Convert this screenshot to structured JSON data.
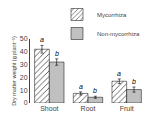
{
  "chart_data": {
    "type": "bar",
    "categories": [
      "Shoot",
      "Root",
      "Fruit"
    ],
    "series": [
      {
        "name": "Mycorrhiza",
        "color": "#e8e8e8",
        "values": [
          42,
          7.5,
          17
        ],
        "error": [
          3.0,
          1.2,
          1.8
        ],
        "annotations": [
          "a",
          "a",
          "a"
        ]
      },
      {
        "name": "Non-mycorrhiza",
        "color": "#c0c0c0",
        "values": [
          32,
          4.5,
          10.5
        ],
        "error": [
          2.5,
          0.8,
          2.0
        ],
        "annotations": [
          "b",
          "b",
          "b"
        ]
      }
    ],
    "ylabel": "Dry matter weight (g plant⁻¹)",
    "ylim": [
      0,
      50
    ],
    "yticks": [
      0,
      10,
      20,
      30,
      40,
      50
    ],
    "grid": false,
    "legend": "upper right"
  }
}
